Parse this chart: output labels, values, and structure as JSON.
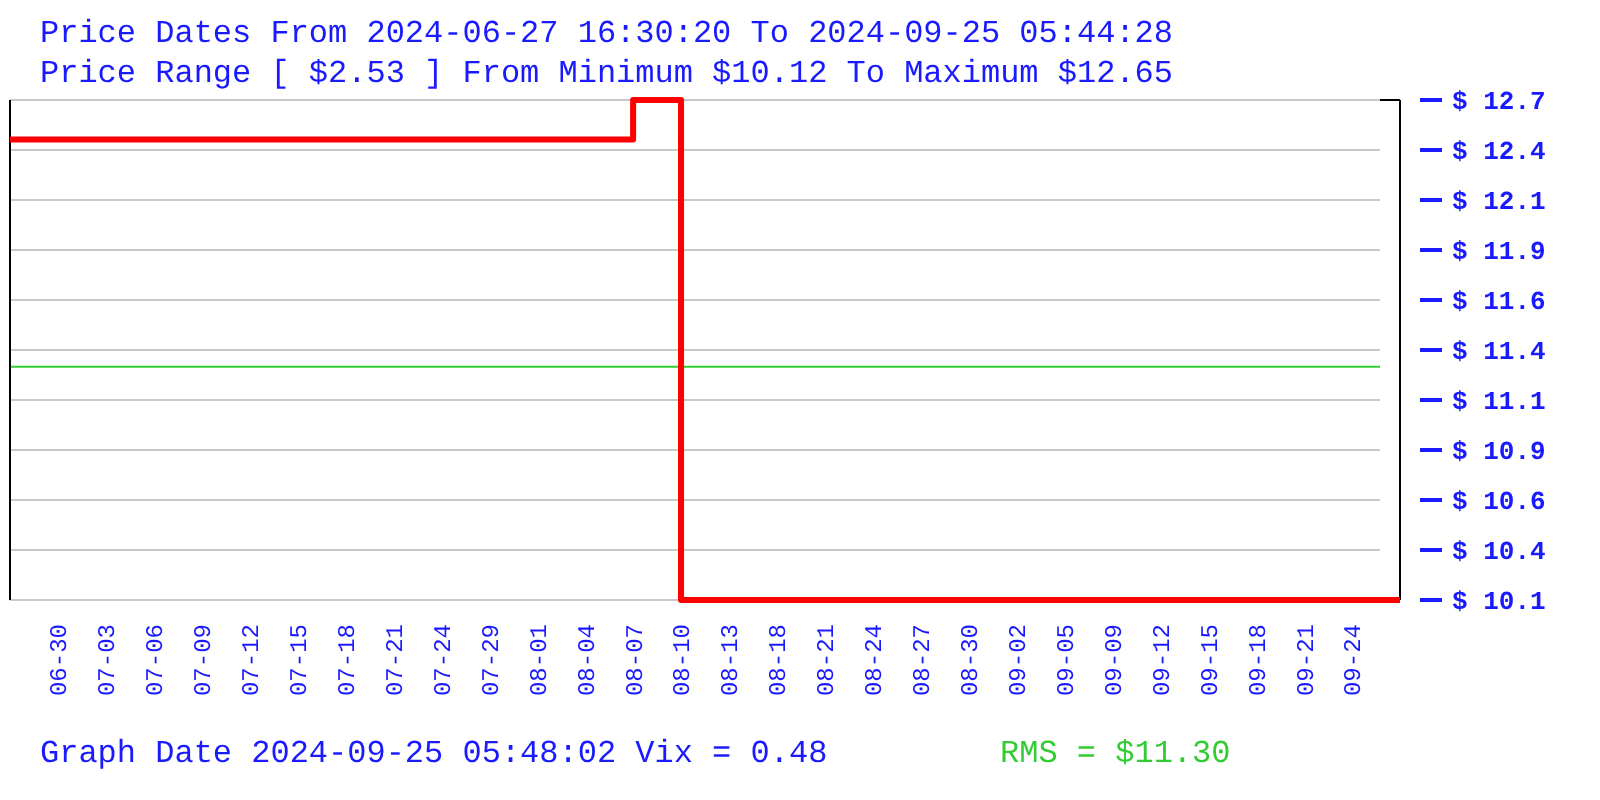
{
  "chart_data": {
    "type": "step",
    "title": "Price Dates From 2024-06-27 16:30:20 To 2024-09-25 05:44:28",
    "subtitle": "Price Range [ $2.53 ] From Minimum $10.12 To Maximum $12.65",
    "categories": [
      null,
      "06-30",
      "07-03",
      "07-06",
      "07-09",
      "07-12",
      "07-15",
      "07-18",
      "07-21",
      "07-24",
      "07-29",
      "08-01",
      "08-04",
      "08-07",
      "08-10",
      "08-13",
      "08-18",
      "08-21",
      "08-24",
      "08-27",
      "08-30",
      "09-02",
      "09-05",
      "09-09",
      "09-12",
      "09-15",
      "09-18",
      "09-21",
      "09-24",
      null
    ],
    "series": [
      {
        "color": "#ff0000",
        "values": [
          12.45,
          12.45,
          12.45,
          12.45,
          12.45,
          12.45,
          12.45,
          12.45,
          12.45,
          12.45,
          12.45,
          12.45,
          12.45,
          12.65,
          10.12,
          10.12,
          10.12,
          10.12,
          10.12,
          10.12,
          10.12,
          10.12,
          10.12,
          10.12,
          10.12,
          10.12,
          10.12,
          10.12,
          10.12,
          10.12
        ]
      }
    ],
    "ylim": [
      10.12,
      12.65
    ],
    "yticks": [
      {
        "value": 10.12,
        "label": "$ 10.1"
      },
      {
        "value": 10.373,
        "label": "$ 10.4"
      },
      {
        "value": 10.626,
        "label": "$ 10.6"
      },
      {
        "value": 10.879,
        "label": "$ 10.9"
      },
      {
        "value": 11.132,
        "label": "$ 11.1"
      },
      {
        "value": 11.385,
        "label": "$ 11.4"
      },
      {
        "value": 11.638,
        "label": "$ 11.6"
      },
      {
        "value": 11.891,
        "label": "$ 11.9"
      },
      {
        "value": 12.144,
        "label": "$ 12.1"
      },
      {
        "value": 12.397,
        "label": "$ 12.4"
      },
      {
        "value": 12.65,
        "label": "$ 12.7"
      }
    ],
    "grid": "y",
    "ref_lines": [
      {
        "axis": "y",
        "value": 11.3,
        "label": "RMS = $11.30",
        "color": "#33cc33"
      }
    ],
    "annotations": [
      "Graph Date 2024-09-25 05:48:02 Vix = 0.48"
    ]
  }
}
